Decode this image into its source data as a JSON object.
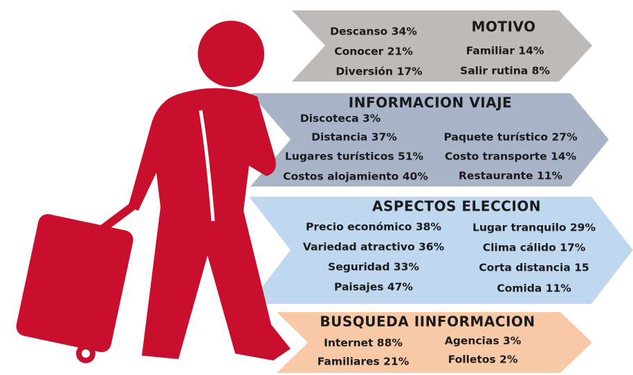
{
  "sections": [
    {
      "title": "MOTIVO",
      "left": [
        "Descanso 34%",
        "Conocer 21%",
        "Diversión 17%"
      ],
      "right": [
        "Familiar 14%",
        "Salir rutina 8%"
      ]
    },
    {
      "title": "INFORMACION VIAJE",
      "left": [
        "Discoteca 3%",
        "Distancia 37%",
        "Lugares turísticos 51%",
        "Costos alojamiento 40%"
      ],
      "right": [
        "Paquete turístico 27%",
        "Costo transporte 14%",
        "Restaurante 11%"
      ]
    },
    {
      "title": "ASPECTOS ELECCION",
      "left": [
        "Precio económico 38%",
        "Variedad atractivo 36%",
        "Seguridad 33%",
        "Paisajes 47%"
      ],
      "right": [
        "Lugar tranquilo 29%",
        "Clima cálido 17%",
        "Corta distancia 15",
        "Comida 11%"
      ]
    },
    {
      "title": "BUSQUEDA IINFORMACION",
      "left": [
        "Internet 88%",
        "Familiares 21%"
      ],
      "right": [
        "Agencias 3%",
        "Folletos 2%"
      ]
    }
  ]
}
